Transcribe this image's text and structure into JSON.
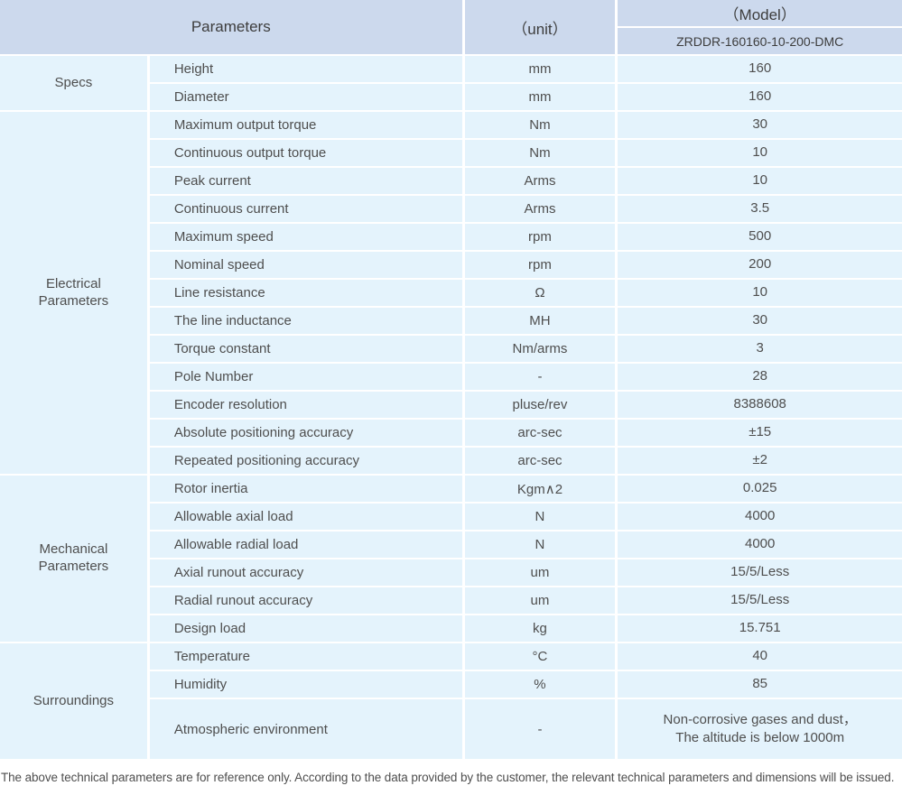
{
  "header": {
    "parameters_label": "Parameters",
    "unit_label": "（unit）",
    "model_label": "（Model）",
    "model_value": "ZRDDR-160160-10-200-DMC"
  },
  "sections": [
    {
      "name": "Specs",
      "rows": [
        {
          "param": "Height",
          "unit": "mm",
          "value": "160"
        },
        {
          "param": "Diameter",
          "unit": "mm",
          "value": "160"
        }
      ]
    },
    {
      "name": "Electrical\nParameters",
      "rows": [
        {
          "param": "Maximum output torque",
          "unit": "Nm",
          "value": "30"
        },
        {
          "param": "Continuous output torque",
          "unit": "Nm",
          "value": "10"
        },
        {
          "param": "Peak current",
          "unit": "Arms",
          "value": "10"
        },
        {
          "param": "Continuous current",
          "unit": "Arms",
          "value": "3.5"
        },
        {
          "param": "Maximum speed",
          "unit": "rpm",
          "value": "500"
        },
        {
          "param": "Nominal speed",
          "unit": "rpm",
          "value": "200"
        },
        {
          "param": "Line resistance",
          "unit": "Ω",
          "value": "10"
        },
        {
          "param": "The line inductance",
          "unit": "MH",
          "value": "30"
        },
        {
          "param": "Torque constant",
          "unit": "Nm/arms",
          "value": "3"
        },
        {
          "param": "Pole Number",
          "unit": "-",
          "value": "28"
        },
        {
          "param": "Encoder resolution",
          "unit": "pluse/rev",
          "value": "8388608"
        },
        {
          "param": "Absolute positioning accuracy",
          "unit": "arc-sec",
          "value": "±15"
        },
        {
          "param": "Repeated positioning accuracy",
          "unit": "arc-sec",
          "value": "±2"
        }
      ]
    },
    {
      "name": "Mechanical\nParameters",
      "rows": [
        {
          "param": "Rotor inertia",
          "unit": "Kgm∧2",
          "value": "0.025"
        },
        {
          "param": "Allowable axial load",
          "unit": "N",
          "value": "4000"
        },
        {
          "param": "Allowable radial load",
          "unit": "N",
          "value": "4000"
        },
        {
          "param": "Axial runout accuracy",
          "unit": "um",
          "value": "15/5/Less"
        },
        {
          "param": "Radial runout accuracy",
          "unit": "um",
          "value": "15/5/Less"
        },
        {
          "param": "Design load",
          "unit": "kg",
          "value": "15.751"
        }
      ]
    },
    {
      "name": "Surroundings",
      "rows": [
        {
          "param": "Temperature",
          "unit": "°C",
          "value": "40"
        },
        {
          "param": "Humidity",
          "unit": "%",
          "value": "85"
        },
        {
          "param": "Atmospheric environment",
          "unit": "-",
          "value": "Non-corrosive gases and dust，\nThe altitude is below 1000m",
          "tall": true
        }
      ]
    }
  ],
  "footer": {
    "note": "The above technical parameters are for reference only. According to the data provided by the customer, the relevant technical parameters and dimensions will be issued."
  },
  "colors": {
    "header_bg": "#ccd9ed",
    "cell_bg": "#e4f3fc",
    "header_text": "#3d3d3d",
    "body_text": "#4e4e4e"
  }
}
